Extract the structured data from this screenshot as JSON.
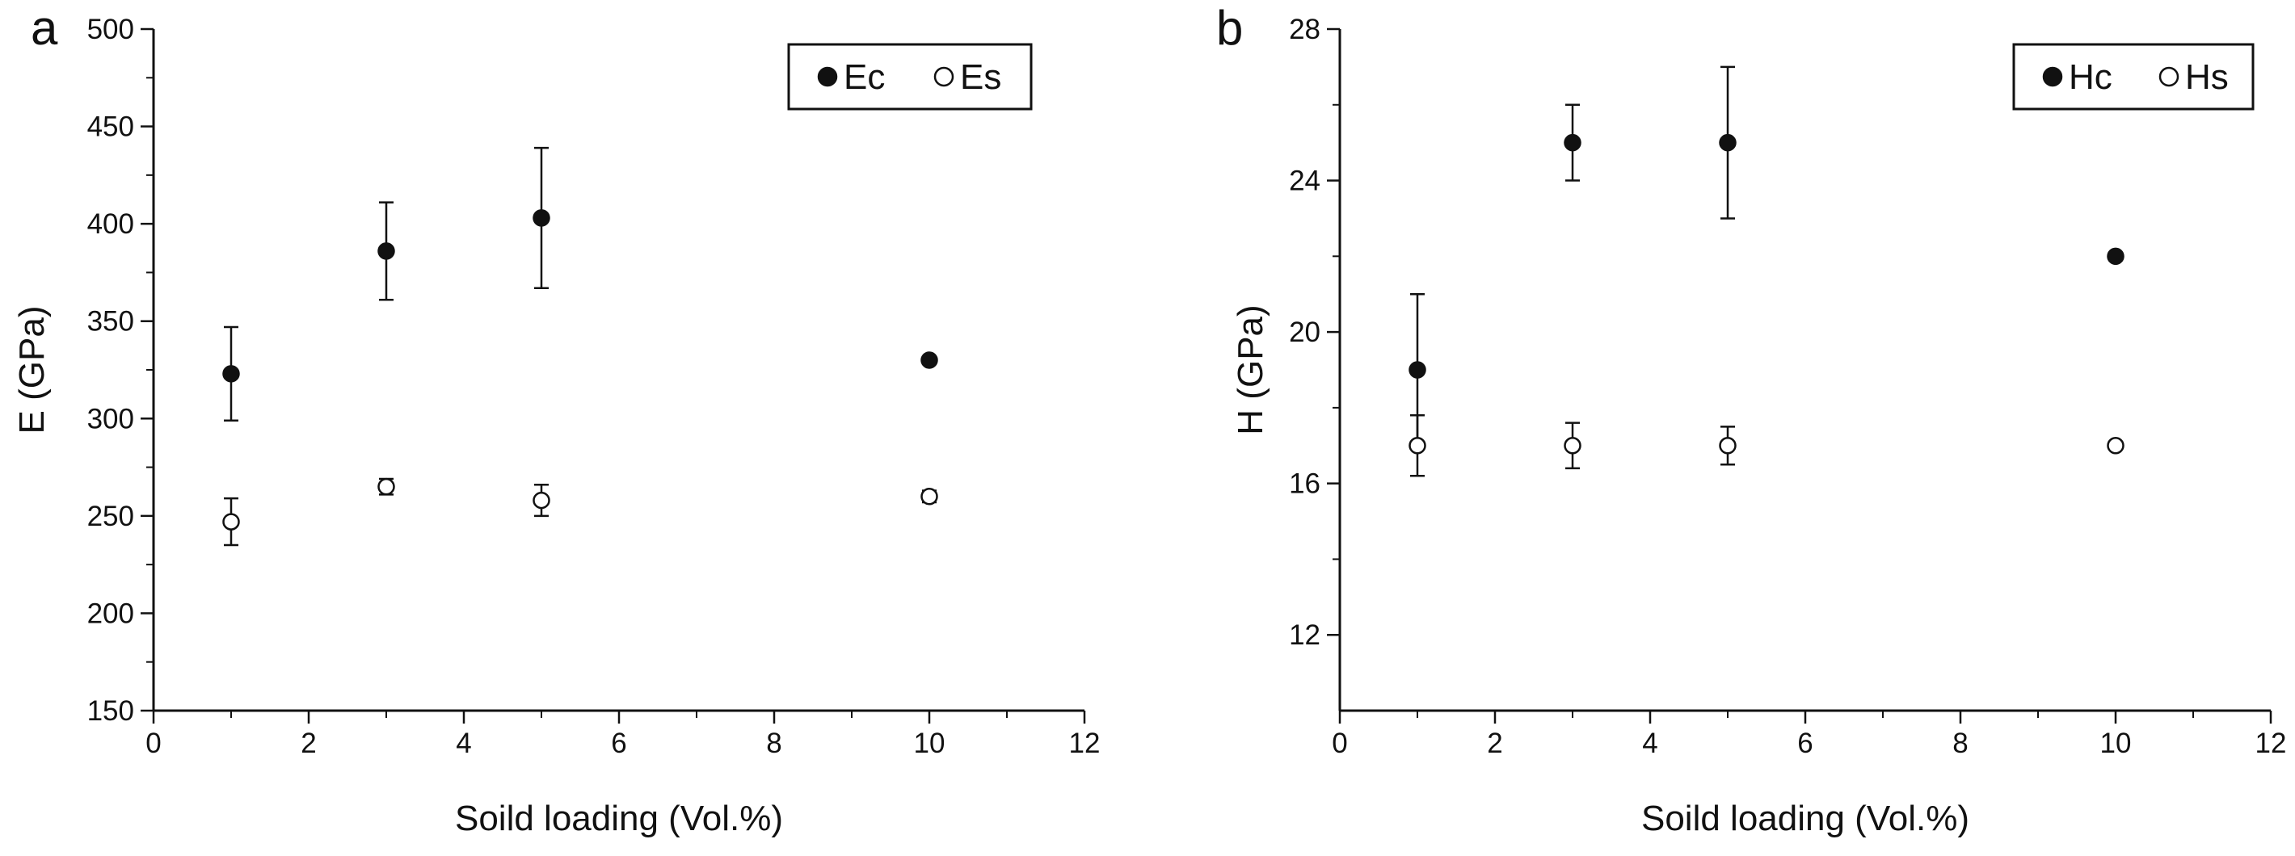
{
  "chart_data": [
    {
      "type": "scatter",
      "panel_label": "a",
      "xlabel": "Soild loading (Vol.%)",
      "ylabel": "E (GPa)",
      "xlim": [
        0,
        12
      ],
      "ylim": [
        150,
        500
      ],
      "x_ticks": [
        0,
        2,
        4,
        6,
        8,
        10,
        12
      ],
      "y_ticks": [
        150,
        200,
        250,
        300,
        350,
        400,
        450,
        500
      ],
      "x_tick_labels": [
        "0",
        "2",
        "4",
        "6",
        "8",
        "10",
        "12"
      ],
      "y_tick_labels": [
        "150",
        "200",
        "250",
        "300",
        "350",
        "400",
        "450",
        "500"
      ],
      "grid": false,
      "legend_position": "top-right",
      "series": [
        {
          "name": "Ec",
          "marker": "filled-circle",
          "x": [
            1,
            3,
            5,
            10
          ],
          "y": [
            323,
            386,
            403,
            330
          ],
          "err": [
            24,
            25,
            36,
            0
          ]
        },
        {
          "name": "Es",
          "marker": "open-circle",
          "x": [
            1,
            3,
            5,
            10
          ],
          "y": [
            247,
            265,
            258,
            260
          ],
          "err": [
            12,
            4,
            8,
            3
          ]
        }
      ]
    },
    {
      "type": "scatter",
      "panel_label": "b",
      "xlabel": "Soild loading (Vol.%)",
      "ylabel": "H (GPa)",
      "xlim": [
        0,
        12
      ],
      "ylim": [
        10,
        28
      ],
      "x_ticks": [
        0,
        2,
        4,
        6,
        8,
        10,
        12
      ],
      "y_ticks": [
        12,
        16,
        20,
        24,
        28
      ],
      "x_tick_labels": [
        "0",
        "2",
        "4",
        "6",
        "8",
        "10",
        "12"
      ],
      "y_tick_labels": [
        "12",
        "16",
        "20",
        "24",
        "28"
      ],
      "grid": false,
      "legend_position": "top-right",
      "series": [
        {
          "name": "Hc",
          "marker": "filled-circle",
          "x": [
            1,
            3,
            5,
            10
          ],
          "y": [
            19,
            25,
            25,
            22
          ],
          "err": [
            2,
            1,
            2,
            0
          ]
        },
        {
          "name": "Hs",
          "marker": "open-circle",
          "x": [
            1,
            3,
            5,
            10
          ],
          "y": [
            17,
            17,
            17,
            17
          ],
          "err": [
            0.8,
            0.6,
            0.5,
            0
          ]
        }
      ]
    }
  ]
}
